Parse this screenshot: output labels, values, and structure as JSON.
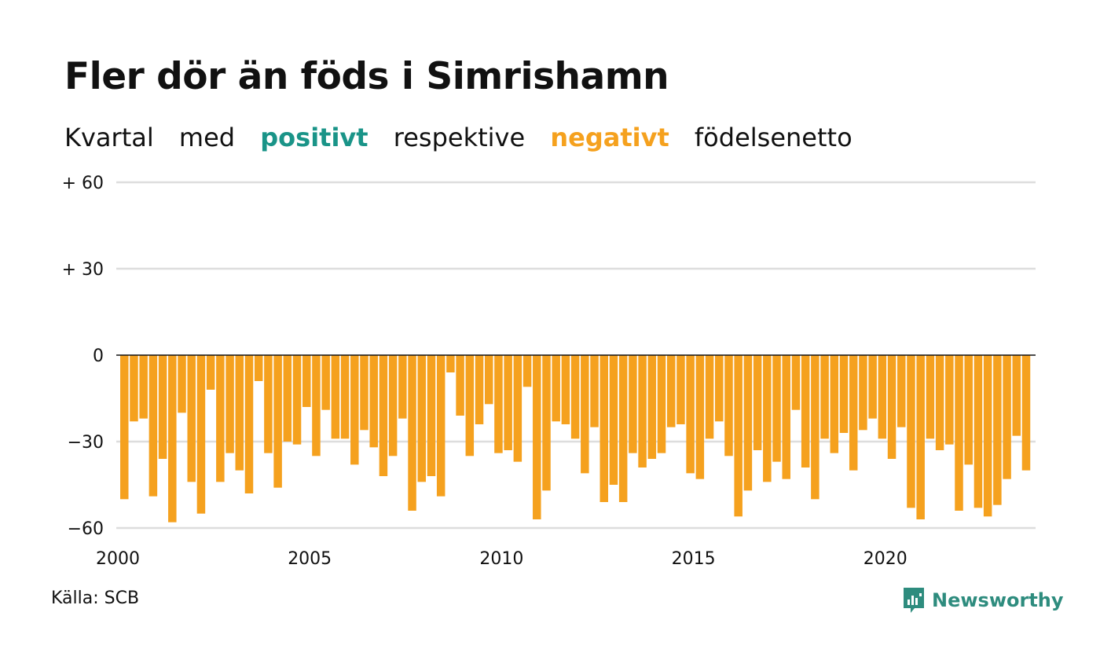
{
  "colors": {
    "positive": "#1a9488",
    "negative": "#f5a11e",
    "grid": "#dddddd",
    "zero": "#111111",
    "text": "#111111",
    "brand": "#2e8c7e"
  },
  "header": {
    "title": "Fler dör än föds i Simrishamn",
    "subtitle_parts": [
      "Kvartal",
      "med",
      "positivt",
      "respektive",
      "negativt",
      "födelsenetto"
    ]
  },
  "footer": {
    "source": "Källa: SCB",
    "brand": "Newsworthy",
    "brand_icon": "newsworthy-logo-icon"
  },
  "chart_data": {
    "type": "bar",
    "x_start_year": 2000,
    "periods_per_year": 4,
    "ylim": [
      -60,
      60
    ],
    "yticks": [
      60,
      30,
      0,
      -30,
      -60
    ],
    "ytick_labels": [
      "+ 60",
      "+ 30",
      "0",
      "−30",
      "−60"
    ],
    "xticks": [
      2000,
      2005,
      2010,
      2015,
      2020
    ],
    "xtick_labels": [
      "2000",
      "2005",
      "2010",
      "2015",
      "2020"
    ],
    "grid": true,
    "values": [
      -50,
      -23,
      -22,
      -49,
      -36,
      -58,
      -20,
      -44,
      -55,
      -12,
      -44,
      -34,
      -40,
      -48,
      -9,
      -34,
      -46,
      -30,
      -31,
      -18,
      -35,
      -19,
      -29,
      -29,
      -38,
      -26,
      -32,
      -42,
      -35,
      -22,
      -54,
      -44,
      -42,
      -49,
      -6,
      -21,
      -35,
      -24,
      -17,
      -34,
      -33,
      -37,
      -11,
      -57,
      -47,
      -23,
      -24,
      -29,
      -41,
      -25,
      -51,
      -45,
      -51,
      -34,
      -39,
      -36,
      -34,
      -25,
      -24,
      -41,
      -43,
      -29,
      -23,
      -35,
      -56,
      -47,
      -33,
      -44,
      -37,
      -43,
      -19,
      -39,
      -50,
      -29,
      -34,
      -27,
      -40,
      -26,
      -22,
      -29,
      -36,
      -25,
      -53,
      -57,
      -29,
      -33,
      -31,
      -54,
      -38,
      -53,
      -56,
      -52,
      -43,
      -28,
      -40
    ]
  }
}
